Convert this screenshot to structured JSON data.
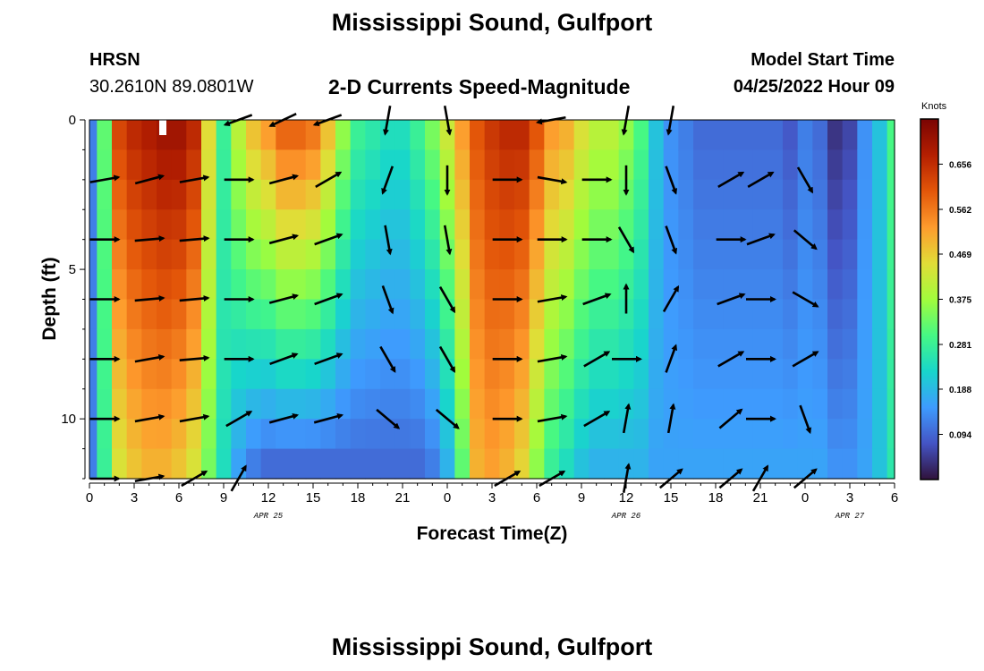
{
  "header": {
    "title": "Mississippi Sound, Gulfport",
    "station_code": "HRSN",
    "coordinates": "30.2610N  89.0801W",
    "subtitle": "2-D Currents Speed-Magnitude",
    "model_start_label": "Model Start Time",
    "model_start_value": "04/25/2022 Hour 09"
  },
  "footer": {
    "title": "Mississippi Sound, Gulfport"
  },
  "chart_data": {
    "type": "heatmap",
    "title": "2-D Currents Speed-Magnitude",
    "xlabel": "Forecast Time(Z)",
    "ylabel": "Depth (ft)",
    "x_tick_labels": [
      "0",
      "3",
      "6",
      "9",
      "12",
      "15",
      "18",
      "21",
      "0",
      "3",
      "6",
      "9",
      "12",
      "15",
      "18",
      "21",
      "0",
      "3",
      "6"
    ],
    "x_range_hours": [
      0,
      54
    ],
    "x_minor_step_hours": 1,
    "y_tick_labels": [
      "0",
      "5",
      "10"
    ],
    "y_ticks": [
      0,
      5,
      10
    ],
    "y_range_ft": [
      0,
      12
    ],
    "y_minor_step_ft": 1,
    "date_labels": [
      {
        "text": "APR 25",
        "hour": 12
      },
      {
        "text": "APR 26",
        "hour": 36
      },
      {
        "text": "APR 27",
        "hour": 51
      }
    ],
    "colorbar": {
      "unit": "Knots",
      "ticks": [
        "0.656",
        "0.562",
        "0.469",
        "0.375",
        "0.281",
        "0.188",
        "0.094"
      ],
      "range": [
        0,
        0.75
      ]
    },
    "speed_profile": {
      "hours": [
        0,
        1,
        2,
        3,
        4,
        5,
        6,
        7,
        8,
        9,
        10,
        11,
        12,
        13,
        14,
        15,
        16,
        17,
        18,
        19,
        20,
        21,
        22,
        23,
        24,
        25,
        26,
        27,
        28,
        29,
        30,
        31,
        32,
        33,
        34,
        35,
        36,
        37,
        38,
        39,
        40,
        41,
        42,
        43,
        44,
        45,
        46,
        47,
        48,
        49,
        50,
        51,
        52,
        53,
        54
      ],
      "surface_knots": [
        0.12,
        0.32,
        0.62,
        0.66,
        0.68,
        0.7,
        0.7,
        0.66,
        0.45,
        0.28,
        0.4,
        0.48,
        0.52,
        0.58,
        0.58,
        0.56,
        0.48,
        0.36,
        0.28,
        0.26,
        0.24,
        0.24,
        0.28,
        0.34,
        0.42,
        0.52,
        0.6,
        0.64,
        0.66,
        0.66,
        0.6,
        0.52,
        0.5,
        0.44,
        0.4,
        0.4,
        0.36,
        0.3,
        0.2,
        0.14,
        0.12,
        0.1,
        0.1,
        0.1,
        0.1,
        0.1,
        0.1,
        0.08,
        0.12,
        0.1,
        0.04,
        0.06,
        0.14,
        0.2,
        0.3
      ],
      "bottom_knots": [
        0.12,
        0.28,
        0.44,
        0.48,
        0.5,
        0.5,
        0.48,
        0.44,
        0.34,
        0.24,
        0.16,
        0.12,
        0.1,
        0.1,
        0.1,
        0.1,
        0.1,
        0.1,
        0.1,
        0.1,
        0.1,
        0.1,
        0.1,
        0.12,
        0.18,
        0.32,
        0.5,
        0.52,
        0.5,
        0.46,
        0.36,
        0.28,
        0.24,
        0.2,
        0.18,
        0.18,
        0.18,
        0.18,
        0.16,
        0.16,
        0.16,
        0.16,
        0.16,
        0.16,
        0.16,
        0.16,
        0.16,
        0.16,
        0.16,
        0.16,
        0.14,
        0.14,
        0.16,
        0.2,
        0.26
      ]
    },
    "vector_rows_depth_ft": [
      0,
      2,
      4,
      6,
      8,
      10,
      12
    ],
    "vector_hours": [
      1,
      4,
      7,
      10,
      13,
      16,
      20,
      24,
      28,
      31,
      34,
      36,
      39,
      43,
      45,
      48
    ],
    "vector_angle_deg": [
      [
        null,
        null,
        null,
        200,
        205,
        200,
        260,
        280,
        null,
        190,
        null,
        260,
        260,
        null,
        null,
        null
      ],
      [
        10,
        15,
        10,
        0,
        15,
        30,
        250,
        270,
        0,
        -10,
        0,
        270,
        290,
        30,
        30,
        300
      ],
      [
        0,
        5,
        5,
        0,
        15,
        20,
        280,
        280,
        0,
        0,
        0,
        300,
        290,
        0,
        20,
        320
      ],
      [
        0,
        5,
        5,
        0,
        15,
        20,
        290,
        300,
        0,
        10,
        20,
        90,
        60,
        20,
        0,
        330
      ],
      [
        0,
        10,
        5,
        0,
        20,
        20,
        300,
        300,
        0,
        10,
        30,
        0,
        70,
        30,
        0,
        30
      ],
      [
        0,
        10,
        10,
        30,
        15,
        15,
        320,
        320,
        0,
        10,
        30,
        80,
        80,
        40,
        0,
        290
      ],
      [
        0,
        10,
        30,
        60,
        null,
        null,
        null,
        null,
        30,
        30,
        null,
        80,
        40,
        40,
        60,
        40
      ]
    ]
  }
}
